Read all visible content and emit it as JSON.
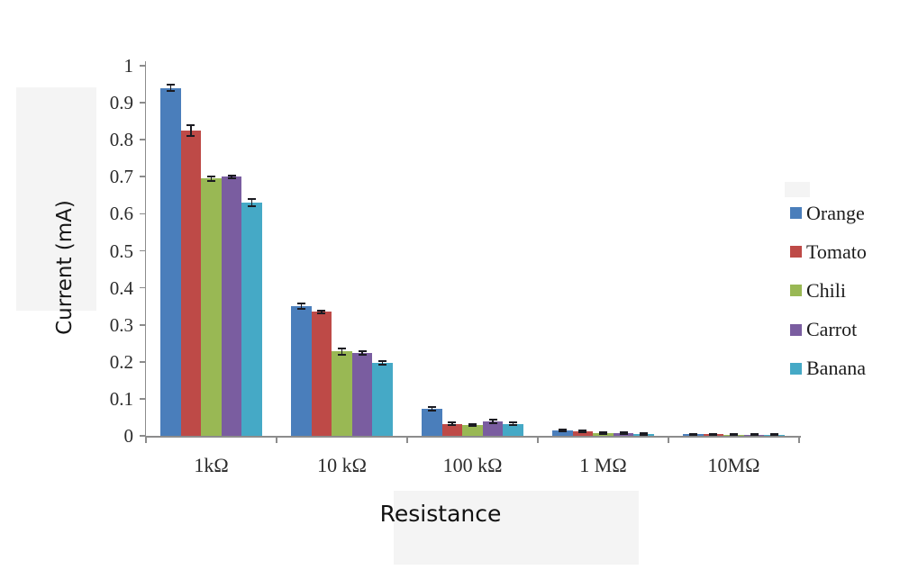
{
  "chart_data": {
    "type": "bar",
    "title": "",
    "xlabel": "Resistance",
    "ylabel": "Current (mA)",
    "categories": [
      "1kΩ",
      "10 kΩ",
      "100 kΩ",
      "1 MΩ",
      "10MΩ"
    ],
    "series": [
      {
        "name": "Orange",
        "color": "#4a7ebb",
        "values": [
          0.94,
          0.35,
          0.073,
          0.015,
          0.004
        ],
        "errors": [
          0.008,
          0.008,
          0.005,
          0.003,
          0.002
        ]
      },
      {
        "name": "Tomato",
        "color": "#be4a47",
        "values": [
          0.825,
          0.335,
          0.032,
          0.012,
          0.004
        ],
        "errors": [
          0.015,
          0.004,
          0.004,
          0.003,
          0.002
        ]
      },
      {
        "name": "Chili",
        "color": "#99b854",
        "values": [
          0.695,
          0.228,
          0.029,
          0.007,
          0.003
        ],
        "errors": [
          0.006,
          0.008,
          0.003,
          0.002,
          0.002
        ]
      },
      {
        "name": "Carrot",
        "color": "#7a5da0",
        "values": [
          0.7,
          0.224,
          0.039,
          0.007,
          0.003
        ],
        "errors": [
          0.004,
          0.005,
          0.005,
          0.002,
          0.002
        ]
      },
      {
        "name": "Banana",
        "color": "#45a9c6",
        "values": [
          0.63,
          0.197,
          0.032,
          0.005,
          0.003
        ],
        "errors": [
          0.01,
          0.006,
          0.004,
          0.002,
          0.002
        ]
      }
    ],
    "ylim": [
      0,
      1
    ],
    "ytick_labels": [
      "1",
      "0.9",
      "0.8",
      "0.7",
      "0.6",
      "0.5",
      "0.4",
      "0.3",
      "0.2",
      "0.1",
      "0"
    ],
    "grid": "off",
    "legend_position": "right",
    "error_bars": true,
    "error_color": "#1b1b22",
    "axis_color": "#8c8c8c"
  }
}
